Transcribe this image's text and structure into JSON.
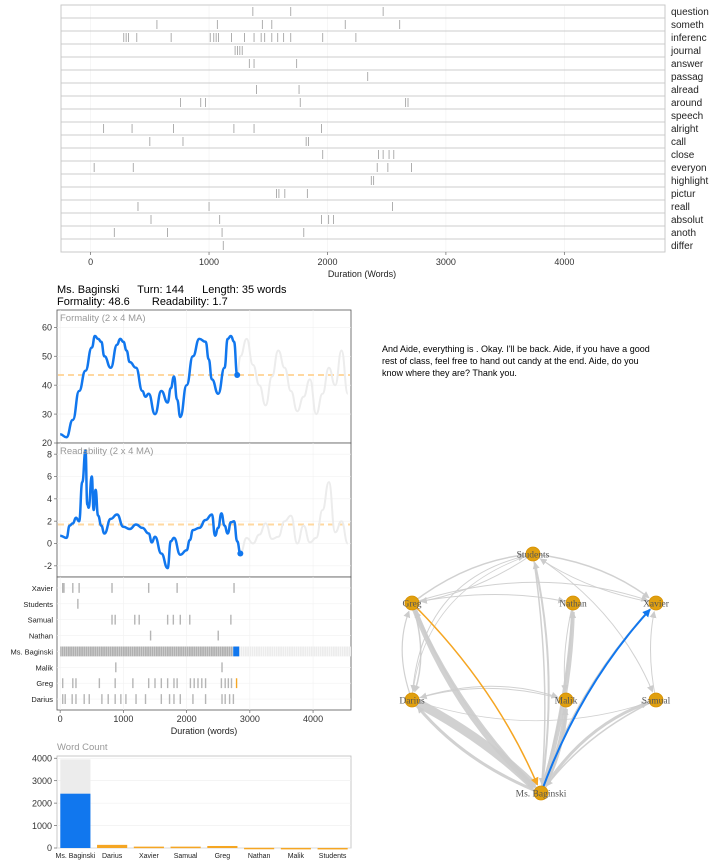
{
  "chart_data": [
    {
      "type": "dispersion",
      "xlabel": "Duration (Words)",
      "xlim": [
        -250,
        4850
      ],
      "xticks": [
        0,
        1000,
        2000,
        3000,
        4000
      ],
      "xtick_labels": [
        "0",
        "1000",
        "2000",
        "3000",
        "4000"
      ],
      "grid": true,
      "terms": [
        {
          "label": "question",
          "positions": [
            1370,
            1690,
            2470
          ]
        },
        {
          "label": "someth",
          "positions": [
            560,
            1070,
            1450,
            1530,
            2150,
            2610
          ]
        },
        {
          "label": "inferenc",
          "positions": [
            280,
            300,
            320,
            390,
            680,
            1010,
            1040,
            1060,
            1080,
            1190,
            1300,
            1380,
            1440,
            1470,
            1530,
            1580,
            1630,
            1690,
            1960,
            2240
          ]
        },
        {
          "label": "journal",
          "positions": [
            1220,
            1240,
            1260,
            1280
          ]
        },
        {
          "label": "answer",
          "positions": [
            1340,
            1380,
            1740
          ]
        },
        {
          "label": "passag",
          "positions": [
            2340
          ]
        },
        {
          "label": "alread",
          "positions": [
            1400,
            1760
          ]
        },
        {
          "label": "around",
          "positions": [
            760,
            930,
            970,
            1770,
            2660,
            2680
          ]
        },
        {
          "label": "speech",
          "positions": []
        },
        {
          "label": "alright",
          "positions": [
            110,
            350,
            700,
            1210,
            1380,
            1950
          ]
        },
        {
          "label": "call",
          "positions": [
            500,
            780,
            1820,
            1840
          ]
        },
        {
          "label": "close",
          "positions": [
            1960,
            2430,
            2470,
            2520,
            2560
          ]
        },
        {
          "label": "everyon",
          "positions": [
            30,
            360,
            2420,
            2510,
            2710
          ]
        },
        {
          "label": "highlight",
          "positions": [
            2370,
            2390
          ]
        },
        {
          "label": "pictur",
          "positions": [
            1570,
            1590,
            1640,
            1830
          ]
        },
        {
          "label": "reall",
          "positions": [
            400,
            1000,
            2550
          ]
        },
        {
          "label": "absolut",
          "positions": [
            510,
            1090,
            1950,
            2010,
            2050
          ]
        },
        {
          "label": "anoth",
          "positions": [
            200,
            650,
            1110,
            1800
          ]
        },
        {
          "label": "differ",
          "positions": [
            1120
          ]
        }
      ]
    },
    {
      "type": "line",
      "title": "Formality (2 x 4 MA)",
      "ylim": [
        20,
        66
      ],
      "yticks": [
        20,
        30,
        40,
        50,
        60
      ],
      "xlim": [
        -50,
        4600
      ],
      "mean": 43.5,
      "current": {
        "x": 2800,
        "y": 43.5
      },
      "series": [
        {
          "role": "observed",
          "x": [
            0,
            100,
            200,
            300,
            400,
            500,
            550,
            600,
            650,
            700,
            800,
            900,
            950,
            1000,
            1050,
            1100,
            1200,
            1300,
            1350,
            1400,
            1500,
            1600,
            1700,
            1750,
            1800,
            1850,
            1900,
            2000,
            2100,
            2200,
            2300,
            2350,
            2400,
            2500,
            2600,
            2650,
            2700,
            2750,
            2800
          ],
          "values": [
            23,
            22,
            28,
            38,
            45,
            53,
            57,
            56,
            55,
            50,
            46,
            54,
            56,
            55,
            52,
            48,
            46,
            38,
            36,
            37,
            30,
            38,
            34,
            39,
            43,
            35,
            29,
            40,
            50,
            56,
            55,
            49,
            42,
            37,
            46,
            56,
            57,
            55,
            43.5
          ]
        },
        {
          "role": "remaining",
          "x": [
            2800,
            2850,
            2950,
            3050,
            3150,
            3250,
            3350,
            3450,
            3550,
            3650,
            3750,
            3850,
            3950,
            4050,
            4150,
            4250,
            4350,
            4450,
            4550
          ],
          "values": [
            43.5,
            50,
            56,
            47,
            40,
            33,
            43,
            52,
            46,
            38,
            31,
            36,
            42,
            30,
            37,
            46,
            40,
            52,
            37
          ]
        }
      ]
    },
    {
      "type": "line",
      "title": "Readability (2 x 4 MA)",
      "ylim": [
        -3,
        9
      ],
      "yticks": [
        -2,
        0,
        2,
        4,
        6,
        8
      ],
      "xlim": [
        -50,
        4600
      ],
      "mean": 1.7,
      "current": {
        "x": 2850,
        "y": -0.9
      },
      "series": [
        {
          "role": "observed",
          "x": [
            0,
            100,
            150,
            200,
            250,
            300,
            350,
            400,
            430,
            450,
            500,
            530,
            560,
            600,
            650,
            700,
            800,
            900,
            1000,
            1100,
            1200,
            1300,
            1400,
            1450,
            1500,
            1600,
            1700,
            1750,
            1800,
            1900,
            2000,
            2050,
            2100,
            2200,
            2300,
            2400,
            2450,
            2500,
            2550,
            2600,
            2650,
            2700,
            2750,
            2800,
            2850
          ],
          "values": [
            0.7,
            0.5,
            1.6,
            1.8,
            2.3,
            2.0,
            5.5,
            8.3,
            3.5,
            3.2,
            6.0,
            3.0,
            4.8,
            2.5,
            1.6,
            0.9,
            2.2,
            2.6,
            1.5,
            1.3,
            1.7,
            1.4,
            0.9,
            0.1,
            0.6,
            -0.9,
            -2.2,
            0.2,
            0.5,
            -1.0,
            -0.6,
            0.3,
            1.2,
            1.4,
            2.1,
            2.6,
            0.7,
            1.4,
            2.7,
            1.6,
            0.9,
            1.9,
            2.0,
            0.2,
            -0.9
          ]
        },
        {
          "role": "remaining",
          "x": [
            2850,
            2950,
            3050,
            3150,
            3250,
            3350,
            3450,
            3550,
            3650,
            3750,
            3850,
            3950,
            4050,
            4150,
            4250,
            4350,
            4450,
            4550
          ],
          "values": [
            -0.9,
            0.5,
            0.0,
            0.8,
            1.8,
            0.4,
            0.6,
            2.0,
            2.5,
            0.0,
            1.6,
            0.1,
            0.5,
            3.0,
            5.5,
            1.0,
            2.0,
            0.0
          ]
        }
      ]
    },
    {
      "type": "dispersion",
      "xlabel": "Duration (words)",
      "xlim": [
        -50,
        4600
      ],
      "xticks": [
        0,
        1000,
        2000,
        3000,
        4000
      ],
      "xtick_labels": [
        "0",
        "1000",
        "2000",
        "3000",
        "4000"
      ],
      "current_x": 2800,
      "speakers": [
        {
          "label": "Xavier",
          "positions": [
            40,
            60,
            200,
            300,
            820,
            1400,
            1850,
            2750
          ]
        },
        {
          "label": "Students",
          "positions": [
            280
          ]
        },
        {
          "label": "Samual",
          "positions": [
            820,
            870,
            1180,
            1250,
            1700,
            1790,
            1900,
            2050,
            2700
          ]
        },
        {
          "label": "Nathan",
          "positions": [
            1430,
            2500
          ]
        },
        {
          "label": "Ms. Baginski",
          "positions": [],
          "dense": [
            [
              0,
              2730
            ]
          ],
          "current": 2800
        },
        {
          "label": "Malik",
          "positions": [
            880,
            2560
          ]
        },
        {
          "label": "Greg",
          "positions": [
            40,
            200,
            250,
            620,
            870,
            1150,
            1400,
            1500,
            1600,
            1700,
            1800,
            1850,
            2060,
            2120,
            2180,
            2240,
            2300,
            2550,
            2610,
            2660,
            2710,
            2790
          ]
        },
        {
          "label": "Darius",
          "positions": [
            40,
            80,
            190,
            250,
            380,
            460,
            660,
            760,
            870,
            960,
            1040,
            1200,
            1350,
            1600,
            1730,
            1800,
            1900,
            2100,
            2300,
            2560,
            2610,
            2680,
            2740
          ]
        }
      ]
    },
    {
      "type": "bar",
      "title": "Word Count",
      "ylim": [
        0,
        4100
      ],
      "yticks": [
        0,
        1000,
        2000,
        3000,
        4000
      ],
      "categories": [
        "Ms. Baginski",
        "Darius",
        "Xavier",
        "Samual",
        "Greg",
        "Nathan",
        "Malik",
        "Students"
      ],
      "totals": [
        3950,
        120,
        60,
        60,
        60,
        15,
        10,
        5
      ],
      "values": [
        2420,
        140,
        60,
        60,
        90,
        10,
        5,
        3
      ]
    },
    {
      "type": "network",
      "nodes": [
        {
          "id": "Students",
          "label": "Students"
        },
        {
          "id": "Greg",
          "label": "Greg"
        },
        {
          "id": "Nathan",
          "label": "Nathan"
        },
        {
          "id": "Xavier",
          "label": "Xavier"
        },
        {
          "id": "Darius",
          "label": "Darius"
        },
        {
          "id": "Malik",
          "label": "Malik"
        },
        {
          "id": "Samual",
          "label": "Samual"
        },
        {
          "id": "Ms. Baginski",
          "label": "Ms. Baginski"
        }
      ]
    }
  ],
  "turn_info": {
    "speaker": "Ms. Baginski",
    "turn": "Turn: 144",
    "length": "Length: 35 words",
    "formality": "Formality: 48.6",
    "readability": "Readability: 1.7"
  },
  "excerpt": "And Aide, everything is . Okay. I'll be back. Aide, if you have a good rest of class, feel free to hand out candy at the end. Aide, do you know where they are? Thank you.",
  "colors": {
    "highlight": "#1177ee",
    "accent": "#f5a623",
    "node": "#e0a010",
    "gray": "#aaaaaa",
    "faded": "#ececec"
  }
}
